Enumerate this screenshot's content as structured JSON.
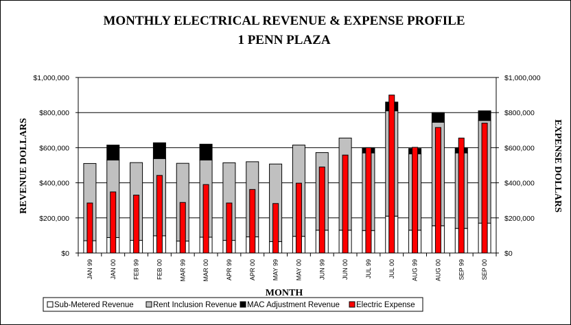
{
  "chart_data": {
    "type": "bar",
    "title": "MONTHLY ELECTRICAL REVENUE & EXPENSE PROFILE",
    "subtitle": "1 PENN PLAZA",
    "xlabel": "MONTH",
    "ylabel_left": "REVENUE DOLLARS",
    "ylabel_right": "EXPENSE DOLLARS",
    "ylim": [
      0,
      1000000
    ],
    "yticks": [
      "$0",
      "$200,000",
      "$400,000",
      "$600,000",
      "$800,000",
      "$1,000,000"
    ],
    "grid": "horizontal",
    "legend_position": "bottom",
    "categories": [
      "JAN 99",
      "JAN 00",
      "FEB 99",
      "FEB 00",
      "MAR 99",
      "MAR 00",
      "APR 99",
      "APR 00",
      "MAY 99",
      "MAY 00",
      "JUN 99",
      "JUN 00",
      "JUL 99",
      "JUL 00",
      "AUG 99",
      "AUG 00",
      "SEP 99",
      "SEP 00"
    ],
    "series": [
      {
        "name": "Sub-Metered Revenue",
        "color": "#ffffff",
        "stacked": true,
        "values": [
          70000,
          88000,
          72000,
          98000,
          68000,
          90000,
          72000,
          92000,
          65000,
          95000,
          130000,
          130000,
          128000,
          210000,
          130000,
          155000,
          140000,
          170000
        ]
      },
      {
        "name": "Rent Inclusion Revenue",
        "color": "#c0c0c0",
        "stacked": true,
        "values": [
          440000,
          442000,
          443000,
          440000,
          443000,
          440000,
          442000,
          428000,
          442000,
          520000,
          442000,
          525000,
          442000,
          600000,
          435000,
          590000,
          430000,
          585000
        ]
      },
      {
        "name": "MAC Adjustment Revenue",
        "color": "#000000",
        "stacked": true,
        "values": [
          0,
          85000,
          0,
          90000,
          0,
          90000,
          0,
          0,
          0,
          0,
          0,
          0,
          30000,
          50000,
          30000,
          55000,
          30000,
          55000
        ]
      },
      {
        "name": "Electric Expense",
        "color": "#ff0000",
        "stacked": false,
        "values": [
          285000,
          348000,
          330000,
          442000,
          288000,
          390000,
          285000,
          362000,
          282000,
          398000,
          490000,
          558000,
          600000,
          900000,
          602000,
          715000,
          655000,
          740000
        ]
      }
    ]
  }
}
